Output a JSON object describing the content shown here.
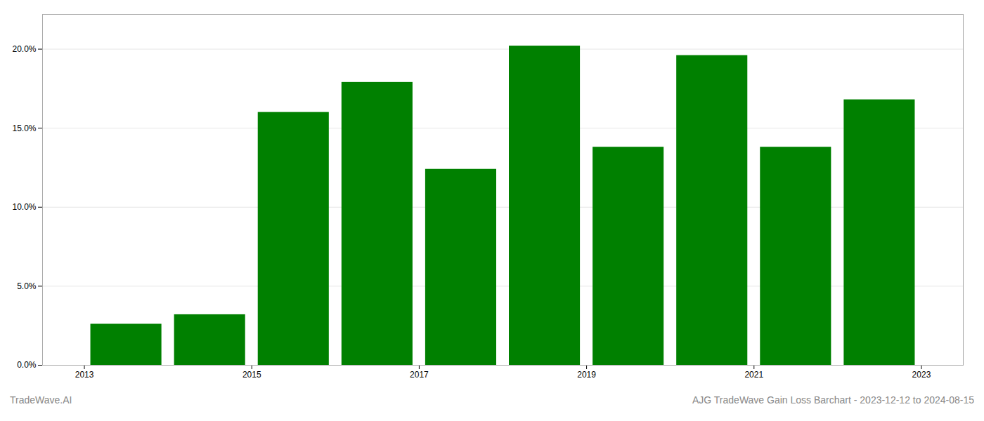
{
  "chart_data": {
    "type": "bar",
    "x": [
      2013,
      2014,
      2015,
      2016,
      2017,
      2018,
      2019,
      2020,
      2021,
      2022
    ],
    "values": [
      0.026,
      0.032,
      0.16,
      0.179,
      0.124,
      0.202,
      0.138,
      0.196,
      0.138,
      0.168
    ],
    "color": "#008000",
    "xlim": [
      2012.5,
      2023.5
    ],
    "xticks": [
      2013,
      2015,
      2017,
      2019,
      2021,
      2023
    ],
    "ylim": [
      0.0,
      0.222
    ],
    "yticks": [
      {
        "value": 0.0,
        "label": "0.0%"
      },
      {
        "value": 0.05,
        "label": "5.0%"
      },
      {
        "value": 0.1,
        "label": "10.0%"
      },
      {
        "value": 0.15,
        "label": "15.0%"
      },
      {
        "value": 0.2,
        "label": "20.0%"
      }
    ],
    "grid": true,
    "annotations": [
      "TradeWave.AI",
      "AJG TradeWave Gain Loss Barchart - 2023-12-12 to 2024-08-15"
    ]
  }
}
